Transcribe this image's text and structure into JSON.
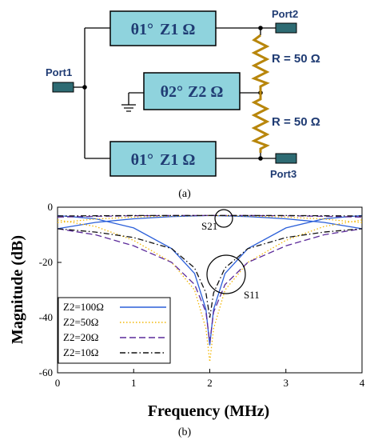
{
  "panel_a": {
    "caption": "(a)",
    "ports": {
      "p1": "Port1",
      "p2": "Port2",
      "p3": "Port3"
    },
    "tlines": {
      "top": {
        "theta": "θ1°",
        "z": "Z1 Ω"
      },
      "middle": {
        "theta": "θ2°",
        "z": "Z2 Ω"
      },
      "bottom": {
        "theta": "θ1°",
        "z": "Z1 Ω"
      }
    },
    "resistors": {
      "r1": "R = 50 Ω",
      "r2": "R = 50 Ω"
    },
    "colors": {
      "box_fill": "#8fd3dd",
      "port_fill": "#2e6b73",
      "resistor": "#b8860b",
      "text": "#1f3b73"
    }
  },
  "panel_b": {
    "caption": "(b)",
    "annotations": {
      "s21": "S21",
      "s11": "S11"
    }
  },
  "chart_data": {
    "type": "line",
    "xlabel": "Frequency (MHz)",
    "ylabel": "Magnitude (dB)",
    "xlim": [
      0,
      4
    ],
    "ylim": [
      -60,
      0
    ],
    "xticks": [
      "0",
      "1",
      "2",
      "3",
      "4"
    ],
    "yticks": [
      "0",
      "-20",
      "-40",
      "-60"
    ],
    "grid": false,
    "legend_position": "bottom-left",
    "series": [
      {
        "name": "Z2=100Ω",
        "color": "#2b5fd9",
        "dash": "solid",
        "s21": {
          "x": [
            0,
            0.5,
            1,
            1.5,
            2,
            2.5,
            3,
            3.5,
            4
          ],
          "y": [
            -7.8,
            -5.5,
            -4.2,
            -3.4,
            -3.0,
            -3.4,
            -4.2,
            -5.5,
            -7.8
          ]
        },
        "s11": {
          "x": [
            0,
            0.5,
            1,
            1.5,
            1.8,
            1.95,
            2,
            2.05,
            2.2,
            2.5,
            3,
            3.5,
            4
          ],
          "y": [
            -3.0,
            -4.2,
            -7.5,
            -15.0,
            -24.0,
            -37.0,
            -50.0,
            -37.0,
            -24.0,
            -15.0,
            -7.5,
            -4.2,
            -3.0
          ]
        }
      },
      {
        "name": "Z2=50Ω",
        "color": "#f2b705",
        "dash": "dot",
        "s21": {
          "x": [
            0,
            0.5,
            1,
            1.5,
            2,
            2.5,
            3,
            3.5,
            4
          ],
          "y": [
            -5.6,
            -4.3,
            -3.6,
            -3.2,
            -3.0,
            -3.2,
            -3.6,
            -4.3,
            -5.6
          ]
        },
        "s11": {
          "x": [
            0,
            0.5,
            1,
            1.5,
            1.8,
            1.95,
            2,
            2.05,
            2.2,
            2.5,
            3,
            3.5,
            4
          ],
          "y": [
            -4.6,
            -7.0,
            -12.0,
            -20.0,
            -30.0,
            -44.0,
            -56.0,
            -44.0,
            -30.0,
            -20.0,
            -12.0,
            -7.0,
            -4.6
          ]
        }
      },
      {
        "name": "Z2=20Ω",
        "color": "#5b2a9a",
        "dash": "dash",
        "s21": {
          "x": [
            0,
            0.5,
            1,
            1.5,
            2,
            2.5,
            3,
            3.5,
            4
          ],
          "y": [
            -3.6,
            -3.3,
            -3.1,
            -3.0,
            -3.0,
            -3.0,
            -3.1,
            -3.3,
            -3.6
          ]
        },
        "s11": {
          "x": [
            0,
            0.5,
            1,
            1.5,
            1.8,
            1.95,
            2,
            2.05,
            2.2,
            2.5,
            3,
            3.5,
            4
          ],
          "y": [
            -7.8,
            -10.0,
            -14.0,
            -20.0,
            -28.0,
            -38.0,
            -49.0,
            -38.0,
            -28.0,
            -20.0,
            -14.0,
            -10.0,
            -7.8
          ]
        }
      },
      {
        "name": "Z2=10Ω",
        "color": "#111111",
        "dash": "dashdot",
        "s21": {
          "x": [
            0,
            0.5,
            1,
            1.5,
            2,
            2.5,
            3,
            3.5,
            4
          ],
          "y": [
            -3.2,
            -3.1,
            -3.0,
            -3.0,
            -3.0,
            -3.0,
            -3.0,
            -3.1,
            -3.2
          ]
        },
        "s11": {
          "x": [
            0,
            0.5,
            1,
            1.5,
            1.8,
            1.95,
            2,
            2.05,
            2.2,
            2.5,
            3,
            3.5,
            4
          ],
          "y": [
            -7.8,
            -9.0,
            -11.0,
            -15.0,
            -22.0,
            -31.0,
            -40.0,
            -31.0,
            -22.0,
            -15.0,
            -11.0,
            -9.0,
            -7.8
          ]
        }
      }
    ]
  }
}
